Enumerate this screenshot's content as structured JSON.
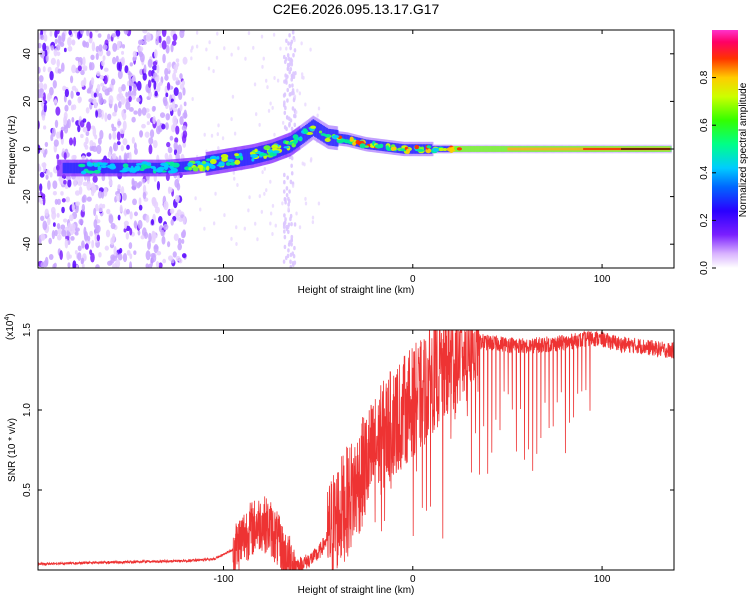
{
  "title": "C2E6.2026.095.13.17.G17",
  "chart_data": [
    {
      "type": "heatmap",
      "name": "spectrogram",
      "xlabel": "Height of straight line (km)",
      "ylabel": "Frequency (Hz)",
      "xlim": [
        -198,
        138
      ],
      "ylim": [
        -50,
        50
      ],
      "xticks": [
        -100,
        0,
        100
      ],
      "xtick_labels": [
        "-100",
        "0",
        "100"
      ],
      "yticks": [
        -40,
        -20,
        0,
        20,
        40
      ],
      "ytick_labels": [
        "-40",
        "-20",
        "0",
        "20",
        "40"
      ],
      "ridge": {
        "x": [
          -190,
          -170,
          -150,
          -130,
          -115,
          -100,
          -85,
          -75,
          -65,
          -58,
          -53,
          -45,
          -35,
          -25,
          -15,
          -5,
          5,
          20,
          40,
          60,
          80,
          100,
          120,
          136
        ],
        "y": [
          -8,
          -8,
          -8,
          -8,
          -7,
          -5,
          -3,
          -1,
          2,
          6,
          9,
          5,
          4,
          2,
          1,
          0,
          0,
          0,
          0,
          0,
          0,
          0,
          0,
          0
        ]
      },
      "noise_region_x": [
        -198,
        -120
      ],
      "vertical_band_x": -65,
      "colorbar": {
        "label": "Normalized spectral amplitude",
        "range": [
          0,
          1
        ],
        "ticks": [
          0.0,
          0.2,
          0.4,
          0.6,
          0.8
        ],
        "tick_labels": [
          "0.0",
          "0.2",
          "0.4",
          "0.6",
          "0.8"
        ]
      }
    },
    {
      "type": "line",
      "name": "snr",
      "xlabel": "Height of straight line (km)",
      "ylabel": "SNR (10 * v/v)",
      "scale_label": "(x10",
      "scale_exp": "4",
      "scale_close": ")",
      "xlim": [
        -198,
        138
      ],
      "ylim": [
        0,
        15000
      ],
      "xticks": [
        -100,
        0,
        100
      ],
      "xtick_labels": [
        "-100",
        "0",
        "100"
      ],
      "yticks": [
        5000,
        10000,
        15000
      ],
      "ytick_labels": [
        "0.5",
        "1.0",
        "1.5"
      ],
      "color": "#ee3333",
      "x": [
        -198,
        -180,
        -160,
        -140,
        -120,
        -105,
        -95,
        -88,
        -80,
        -75,
        -72,
        -68,
        -65,
        -60,
        -55,
        -50,
        -45,
        -40,
        -35,
        -30,
        -25,
        -20,
        -15,
        -10,
        -5,
        0,
        5,
        10,
        15,
        20,
        25,
        30,
        35,
        40,
        50,
        60,
        70,
        80,
        90,
        95,
        100,
        110,
        120,
        130,
        138
      ],
      "y": [
        300,
        350,
        400,
        450,
        500,
        600,
        1200,
        2300,
        3000,
        2600,
        2000,
        900,
        400,
        300,
        600,
        1000,
        2000,
        3300,
        4200,
        5200,
        6500,
        7500,
        8500,
        9300,
        9900,
        10600,
        11000,
        12000,
        12500,
        13000,
        13500,
        14000,
        14300,
        14200,
        14100,
        14000,
        14100,
        14200,
        14400,
        14500,
        14400,
        14100,
        14000,
        13800,
        13700
      ]
    }
  ]
}
